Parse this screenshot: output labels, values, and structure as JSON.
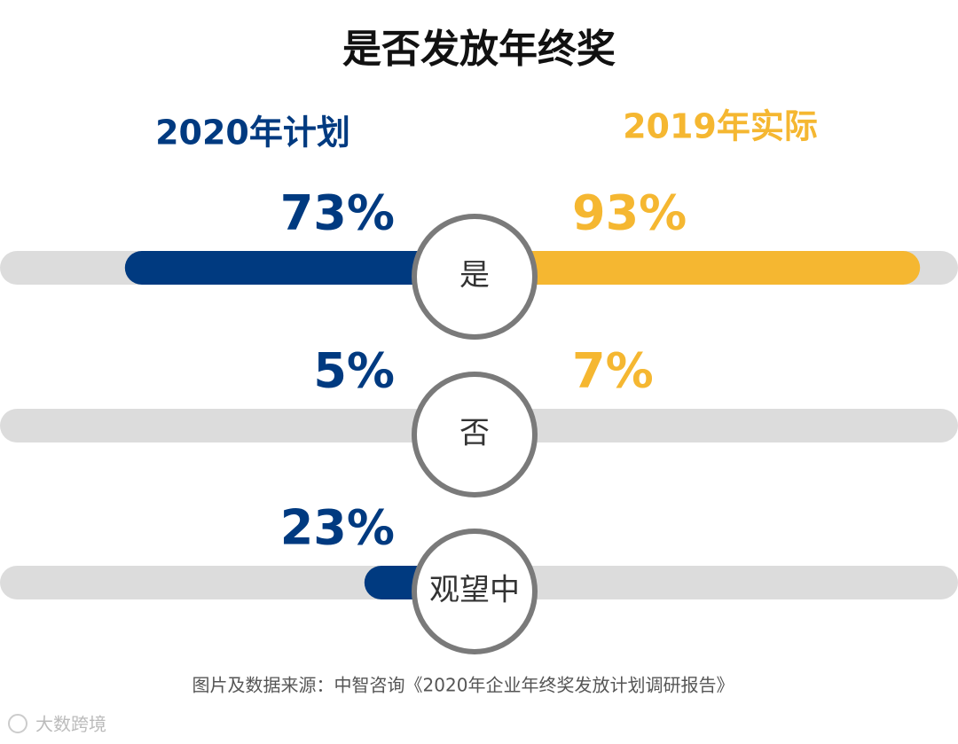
{
  "chart_data": {
    "type": "butterfly-bar",
    "title": "是否发放年终奖",
    "categories": [
      "是",
      "否",
      "观望中"
    ],
    "series": [
      {
        "name": "2020年计划",
        "color": "#003a80",
        "values": [
          73,
          5,
          23
        ],
        "value_labels": [
          "73%",
          "5%",
          "23%"
        ]
      },
      {
        "name": "2019年实际",
        "color": "#f5b731",
        "values": [
          93,
          7,
          null
        ],
        "value_labels": [
          "93%",
          "7%",
          null
        ]
      }
    ],
    "source": "图片及数据来源：中智咨询《2020年企业年终奖发放计划调研报告》",
    "watermark": "大数跨境"
  }
}
